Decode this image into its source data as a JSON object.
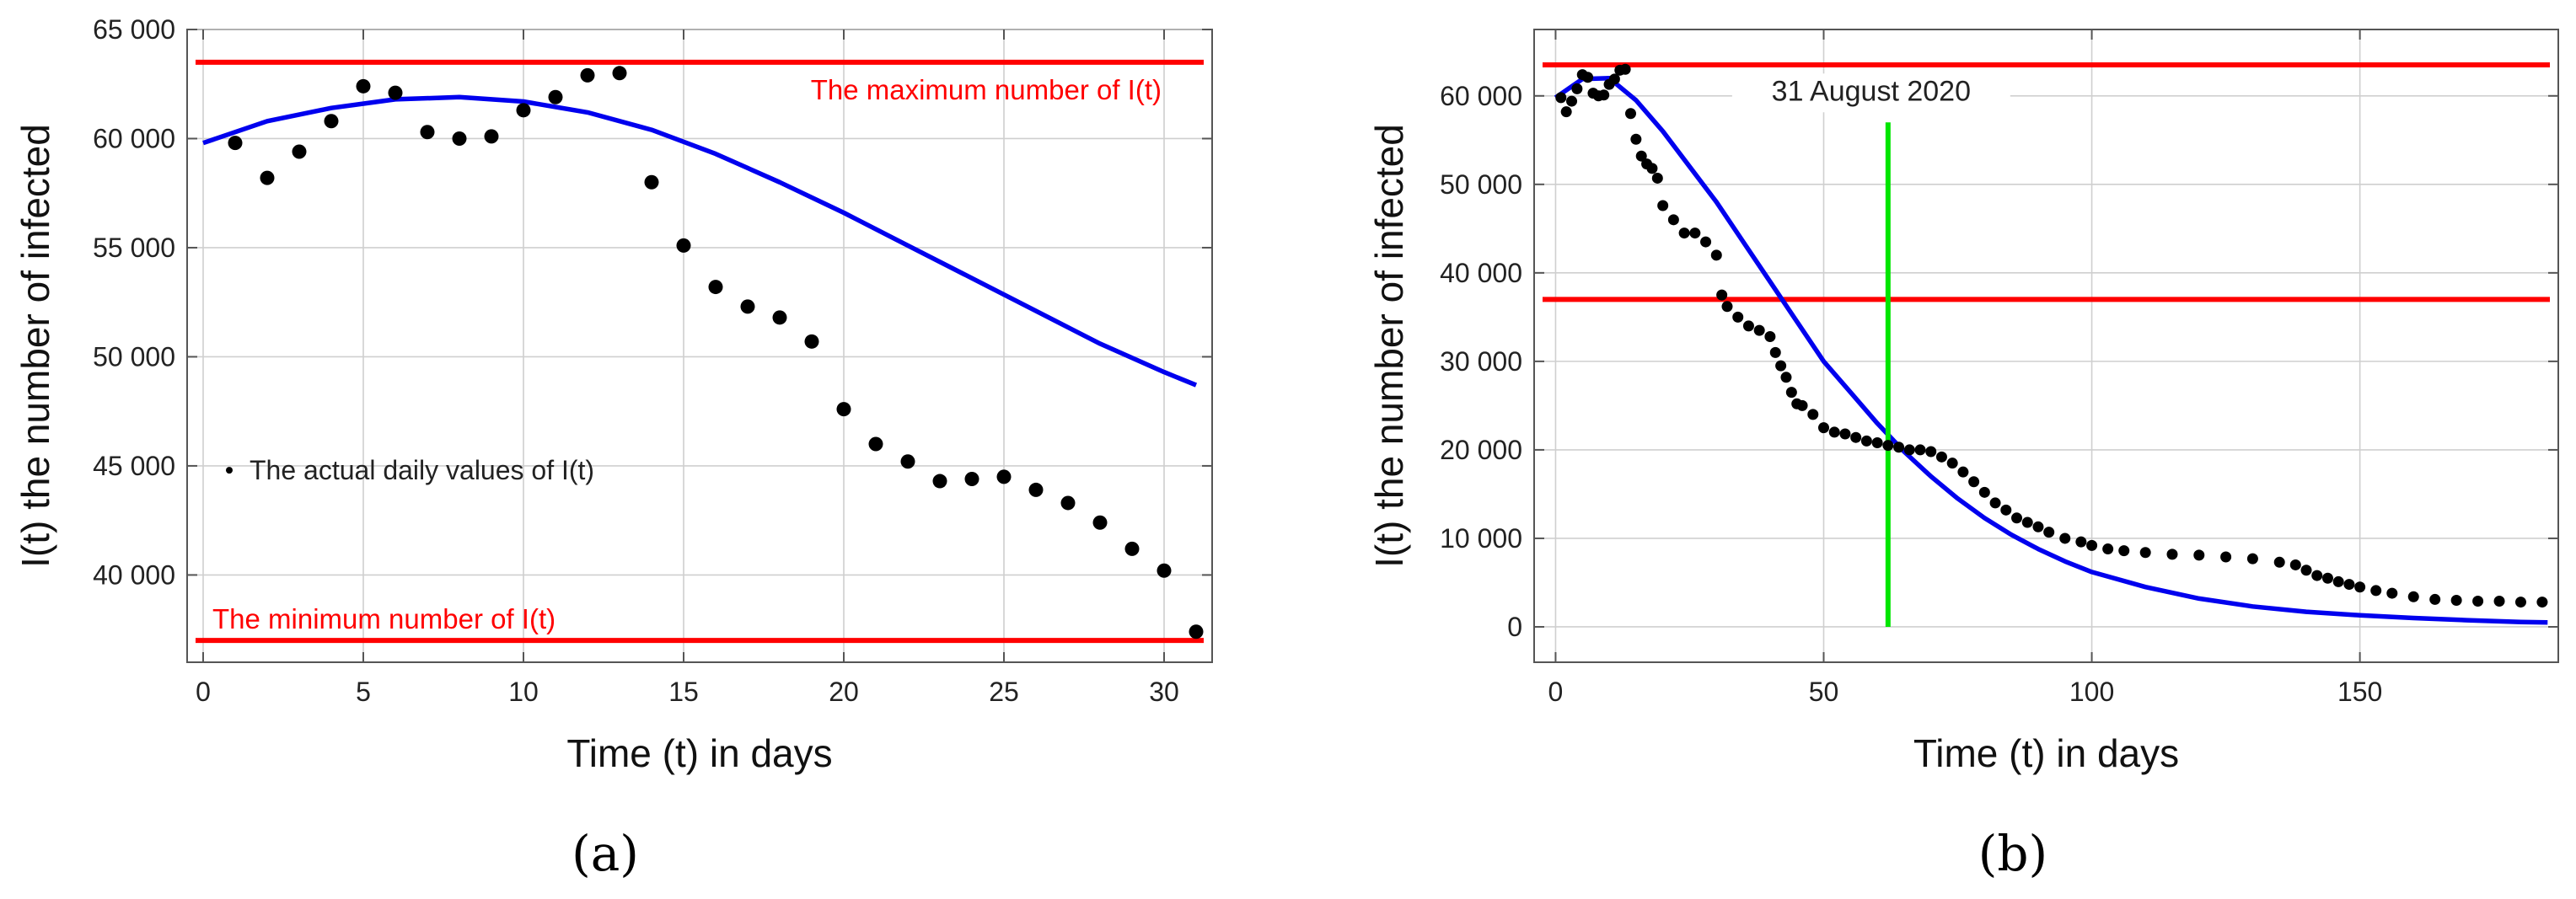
{
  "chart_data": [
    {
      "id": "a",
      "type": "scatter",
      "panel_label": "(a)",
      "xlabel": "Time (t) in days",
      "ylabel": "I(t) the number of infected",
      "xlim": [
        -0.5,
        31.5
      ],
      "ylim": [
        36000,
        65000
      ],
      "xticks": [
        0,
        5,
        10,
        15,
        20,
        25,
        30
      ],
      "xtick_labels": [
        "0",
        "5",
        "10",
        "15",
        "20",
        "25",
        "30"
      ],
      "yticks": [
        40000,
        45000,
        50000,
        55000,
        60000,
        65000
      ],
      "ytick_labels": [
        "40 000",
        "45 000",
        "50 000",
        "55 000",
        "60 000",
        "65 000"
      ],
      "grid": true,
      "hlines": [
        {
          "name": "maximum",
          "y": 63500,
          "label": "The maximum number of I(t)",
          "color": "#ff0000"
        },
        {
          "name": "minimum",
          "y": 37000,
          "label": "The minimum number of I(t)",
          "color": "#ff0000"
        }
      ],
      "legend_text": "The actual daily values of I(t)",
      "series": [
        {
          "name": "actual daily values",
          "kind": "points",
          "color": "#000000",
          "x": [
            1,
            2,
            3,
            4,
            5,
            6,
            7,
            8,
            9,
            10,
            11,
            12,
            13,
            14,
            15,
            16,
            17,
            18,
            19,
            20,
            21,
            22,
            23,
            24,
            25,
            26,
            27,
            28,
            29,
            30,
            31
          ],
          "y": [
            59800,
            58200,
            59400,
            60800,
            62400,
            62100,
            60300,
            60000,
            60100,
            61300,
            61900,
            62900,
            63000,
            58000,
            55100,
            53200,
            52300,
            51800,
            50700,
            47600,
            46000,
            45200,
            44300,
            44400,
            44500,
            43900,
            43300,
            42400,
            41200,
            40200,
            37400
          ]
        },
        {
          "name": "model fit",
          "kind": "line",
          "color": "#0000ee",
          "x": [
            0,
            2,
            4,
            6,
            8,
            10,
            12,
            14,
            16,
            18,
            20,
            22,
            24,
            26,
            28,
            30,
            31
          ],
          "y": [
            59800,
            60800,
            61400,
            61800,
            61900,
            61700,
            61200,
            60400,
            59300,
            58000,
            56600,
            55100,
            53600,
            52100,
            50600,
            49300,
            48700
          ]
        }
      ]
    },
    {
      "id": "b",
      "type": "scatter",
      "panel_label": "(b)",
      "xlabel": "Time (t) in days",
      "ylabel": "I(t) the number of infected",
      "xlim": [
        -4,
        187
      ],
      "ylim": [
        -4000,
        67500
      ],
      "xticks": [
        0,
        50,
        100,
        150
      ],
      "xtick_labels": [
        "0",
        "50",
        "100",
        "150"
      ],
      "yticks": [
        0,
        10000,
        20000,
        30000,
        40000,
        50000,
        60000
      ],
      "ytick_labels": [
        "0",
        "10 000",
        "20 000",
        "30 000",
        "40 000",
        "50 000",
        "60 000"
      ],
      "grid": true,
      "hlines": [
        {
          "name": "maximum",
          "y": 63500,
          "color": "#ff0000"
        },
        {
          "name": "minimum",
          "y": 37000,
          "color": "#ff0000"
        }
      ],
      "vline": {
        "x": 62,
        "y_from": 0,
        "y_to": 57000,
        "label": "31 August 2020",
        "color": "#00e600"
      },
      "series": [
        {
          "name": "actual daily values",
          "kind": "points",
          "color": "#000000",
          "x": [
            1,
            2,
            3,
            4,
            5,
            6,
            7,
            8,
            9,
            10,
            11,
            12,
            13,
            14,
            15,
            16,
            17,
            18,
            19,
            20,
            22,
            24,
            26,
            28,
            30,
            31,
            32,
            34,
            36,
            38,
            40,
            41,
            42,
            43,
            44,
            45,
            46,
            48,
            50,
            52,
            54,
            56,
            58,
            60,
            62,
            64,
            66,
            68,
            70,
            72,
            74,
            76,
            78,
            80,
            82,
            84,
            86,
            88,
            90,
            92,
            95,
            98,
            100,
            103,
            106,
            110,
            115,
            120,
            125,
            130,
            135,
            138,
            140,
            142,
            144,
            146,
            148,
            150,
            153,
            156,
            160,
            164,
            168,
            172,
            176,
            180,
            184
          ],
          "y": [
            59800,
            58200,
            59400,
            60800,
            62400,
            62100,
            60300,
            60000,
            60100,
            61300,
            61900,
            62900,
            63000,
            58000,
            55100,
            53200,
            52300,
            51800,
            50700,
            47600,
            46000,
            44500,
            44500,
            43500,
            42000,
            37500,
            36200,
            35000,
            34000,
            33500,
            32800,
            31000,
            29500,
            28200,
            26500,
            25200,
            25000,
            24000,
            22500,
            22000,
            21800,
            21400,
            21000,
            20800,
            20500,
            20300,
            20000,
            20000,
            19800,
            19200,
            18500,
            17500,
            16400,
            15200,
            14000,
            13200,
            12300,
            11800,
            11300,
            10700,
            10000,
            9600,
            9200,
            8800,
            8600,
            8400,
            8200,
            8100,
            7900,
            7700,
            7300,
            7000,
            6400,
            5800,
            5500,
            5100,
            4800,
            4500,
            4100,
            3800,
            3400,
            3100,
            3000,
            2900,
            2900,
            2800,
            2800
          ]
        },
        {
          "name": "model fit",
          "kind": "line",
          "color": "#0000ee",
          "x": [
            0,
            5,
            10,
            15,
            20,
            25,
            30,
            35,
            40,
            45,
            50,
            55,
            60,
            65,
            70,
            75,
            80,
            85,
            90,
            95,
            100,
            110,
            120,
            130,
            140,
            150,
            160,
            170,
            180,
            185
          ],
          "y": [
            59800,
            61900,
            62000,
            59500,
            56000,
            52000,
            48000,
            43500,
            39000,
            34500,
            30000,
            26500,
            23000,
            19800,
            17000,
            14500,
            12300,
            10400,
            8800,
            7400,
            6200,
            4500,
            3200,
            2300,
            1700,
            1300,
            1000,
            750,
            550,
            500
          ]
        }
      ]
    }
  ]
}
